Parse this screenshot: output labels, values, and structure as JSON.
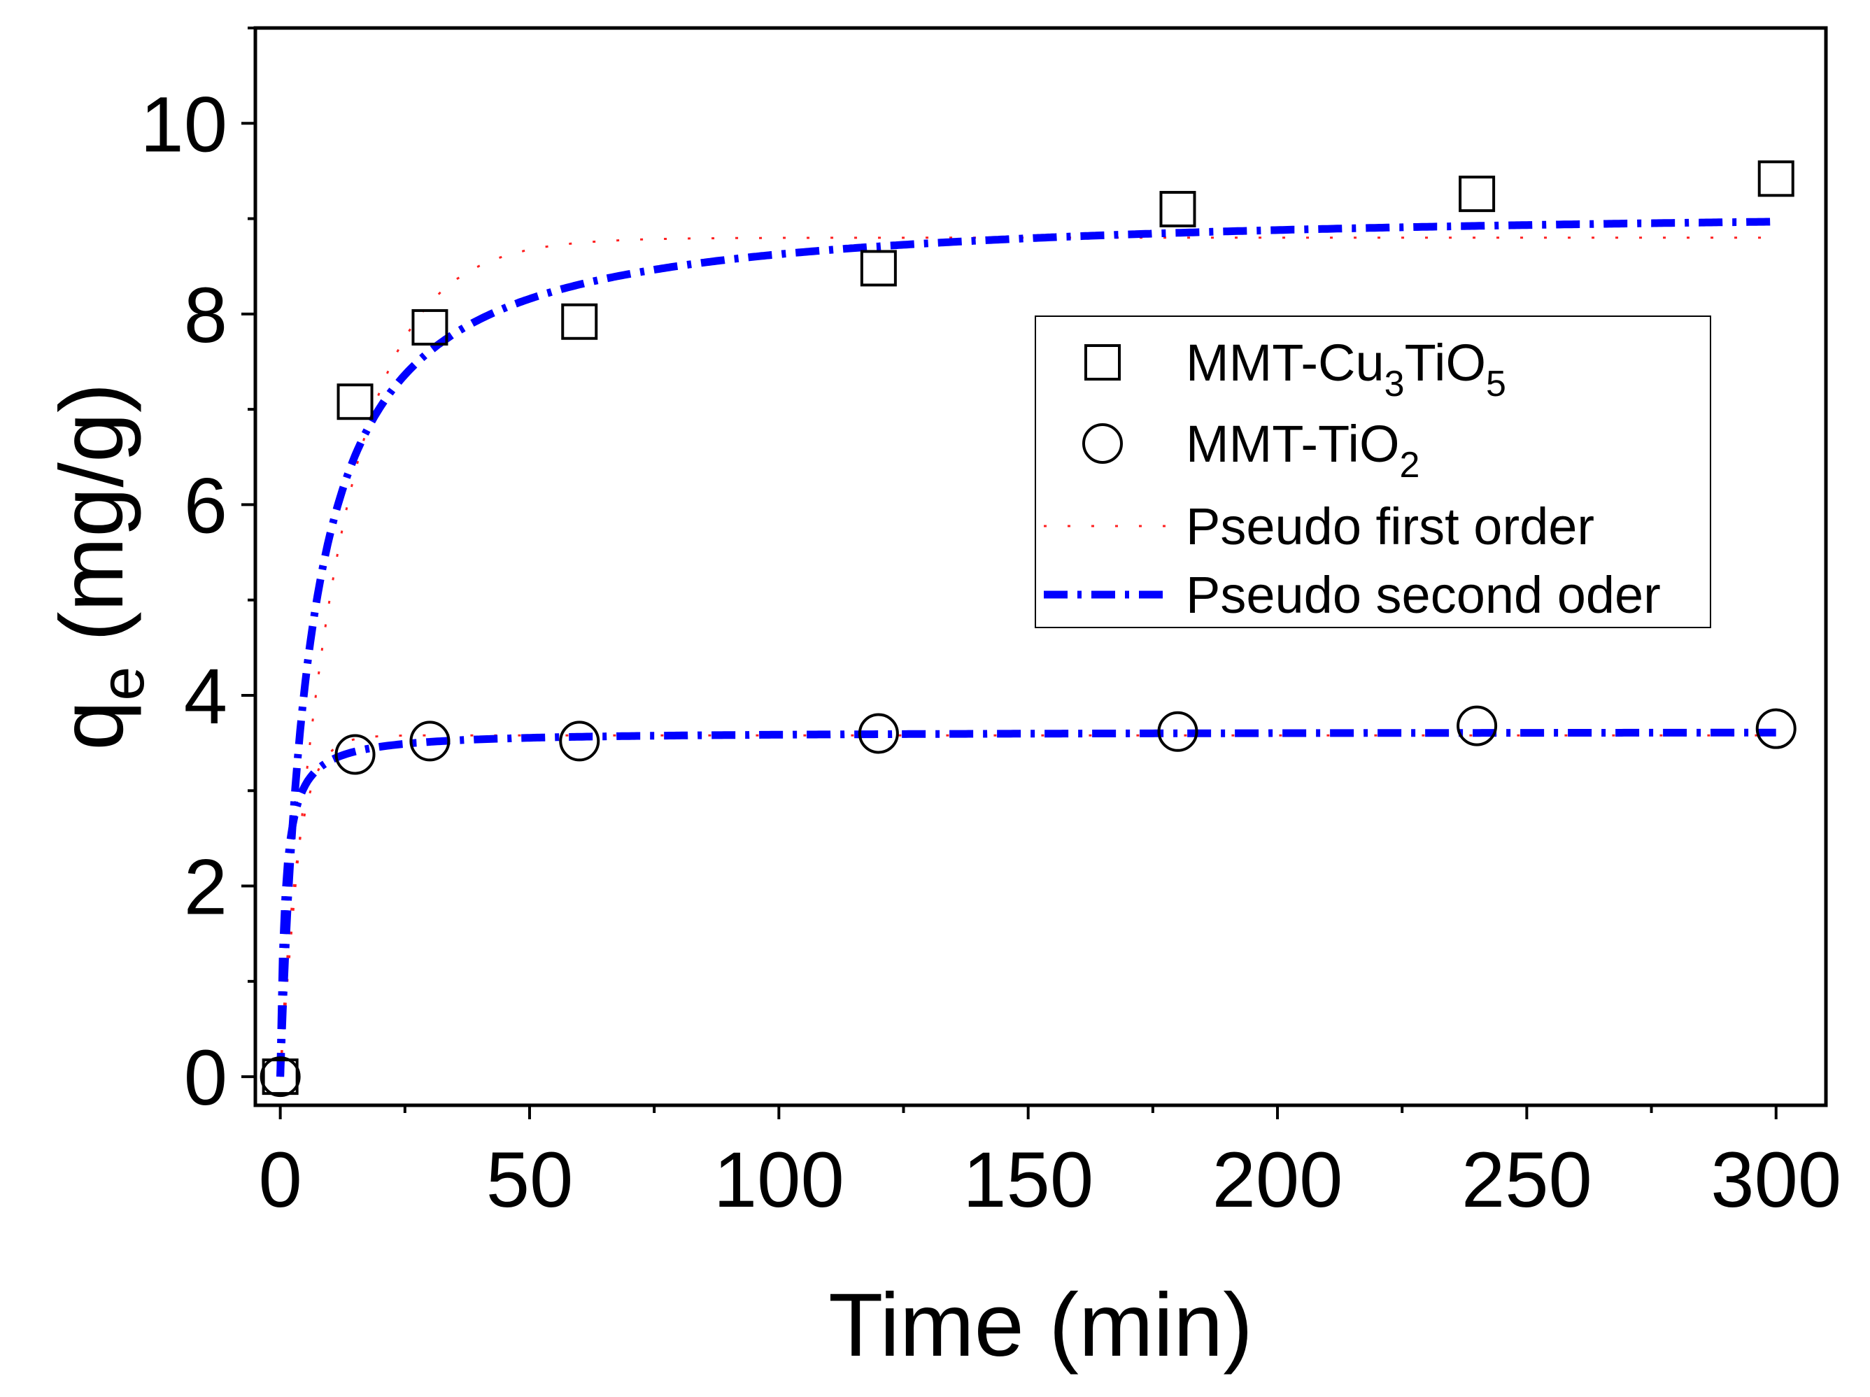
{
  "chart_data": {
    "type": "scatter",
    "title": "",
    "xlabel": "Time (min)",
    "ylabel": {
      "base": "q",
      "sub": "e",
      "rest": " (mg/g)"
    },
    "xlim": [
      -5,
      310
    ],
    "ylim": [
      -0.3,
      11
    ],
    "xticks": [
      0,
      50,
      100,
      150,
      200,
      250,
      300
    ],
    "yticks": [
      0,
      2,
      4,
      6,
      8,
      10
    ],
    "xtick_labels": [
      "0",
      "50",
      "100",
      "150",
      "200",
      "250",
      "300"
    ],
    "ytick_labels": [
      "0",
      "2",
      "4",
      "6",
      "8",
      "10"
    ],
    "x_minor_step": 25,
    "y_minor_step": 1,
    "grid": false,
    "legend_position": "center-right",
    "series": [
      {
        "name": "MMT-Cu3TiO5",
        "label_parts": [
          {
            "t": "MMT-Cu"
          },
          {
            "sub": "3"
          },
          {
            "t": "TiO"
          },
          {
            "sub": "5"
          }
        ],
        "marker": "square",
        "color": "#000000",
        "x": [
          0,
          15,
          30,
          60,
          120,
          180,
          240,
          300
        ],
        "y": [
          0,
          7.08,
          7.86,
          7.92,
          8.48,
          9.1,
          9.26,
          9.42
        ]
      },
      {
        "name": "MMT-TiO2",
        "label_parts": [
          {
            "t": "MMT-TiO"
          },
          {
            "sub": "2"
          }
        ],
        "marker": "circle",
        "color": "#000000",
        "x": [
          0,
          15,
          30,
          60,
          120,
          180,
          240,
          300
        ],
        "y": [
          0,
          3.38,
          3.52,
          3.52,
          3.6,
          3.62,
          3.68,
          3.65
        ]
      }
    ],
    "fits": [
      {
        "name": "Pseudo first order",
        "style": "dotted",
        "color": "#ff2020",
        "model": "first",
        "curves": [
          {
            "qe": 8.8,
            "k": 0.085
          },
          {
            "qe": 3.58,
            "k": 0.3
          }
        ]
      },
      {
        "name": "Pseudo second oder",
        "style": "dash-dot",
        "color": "#0000ff",
        "model": "second",
        "curves": [
          {
            "qe": 9.15,
            "k": 0.018
          },
          {
            "qe": 3.62,
            "k": 0.3
          }
        ]
      }
    ]
  }
}
